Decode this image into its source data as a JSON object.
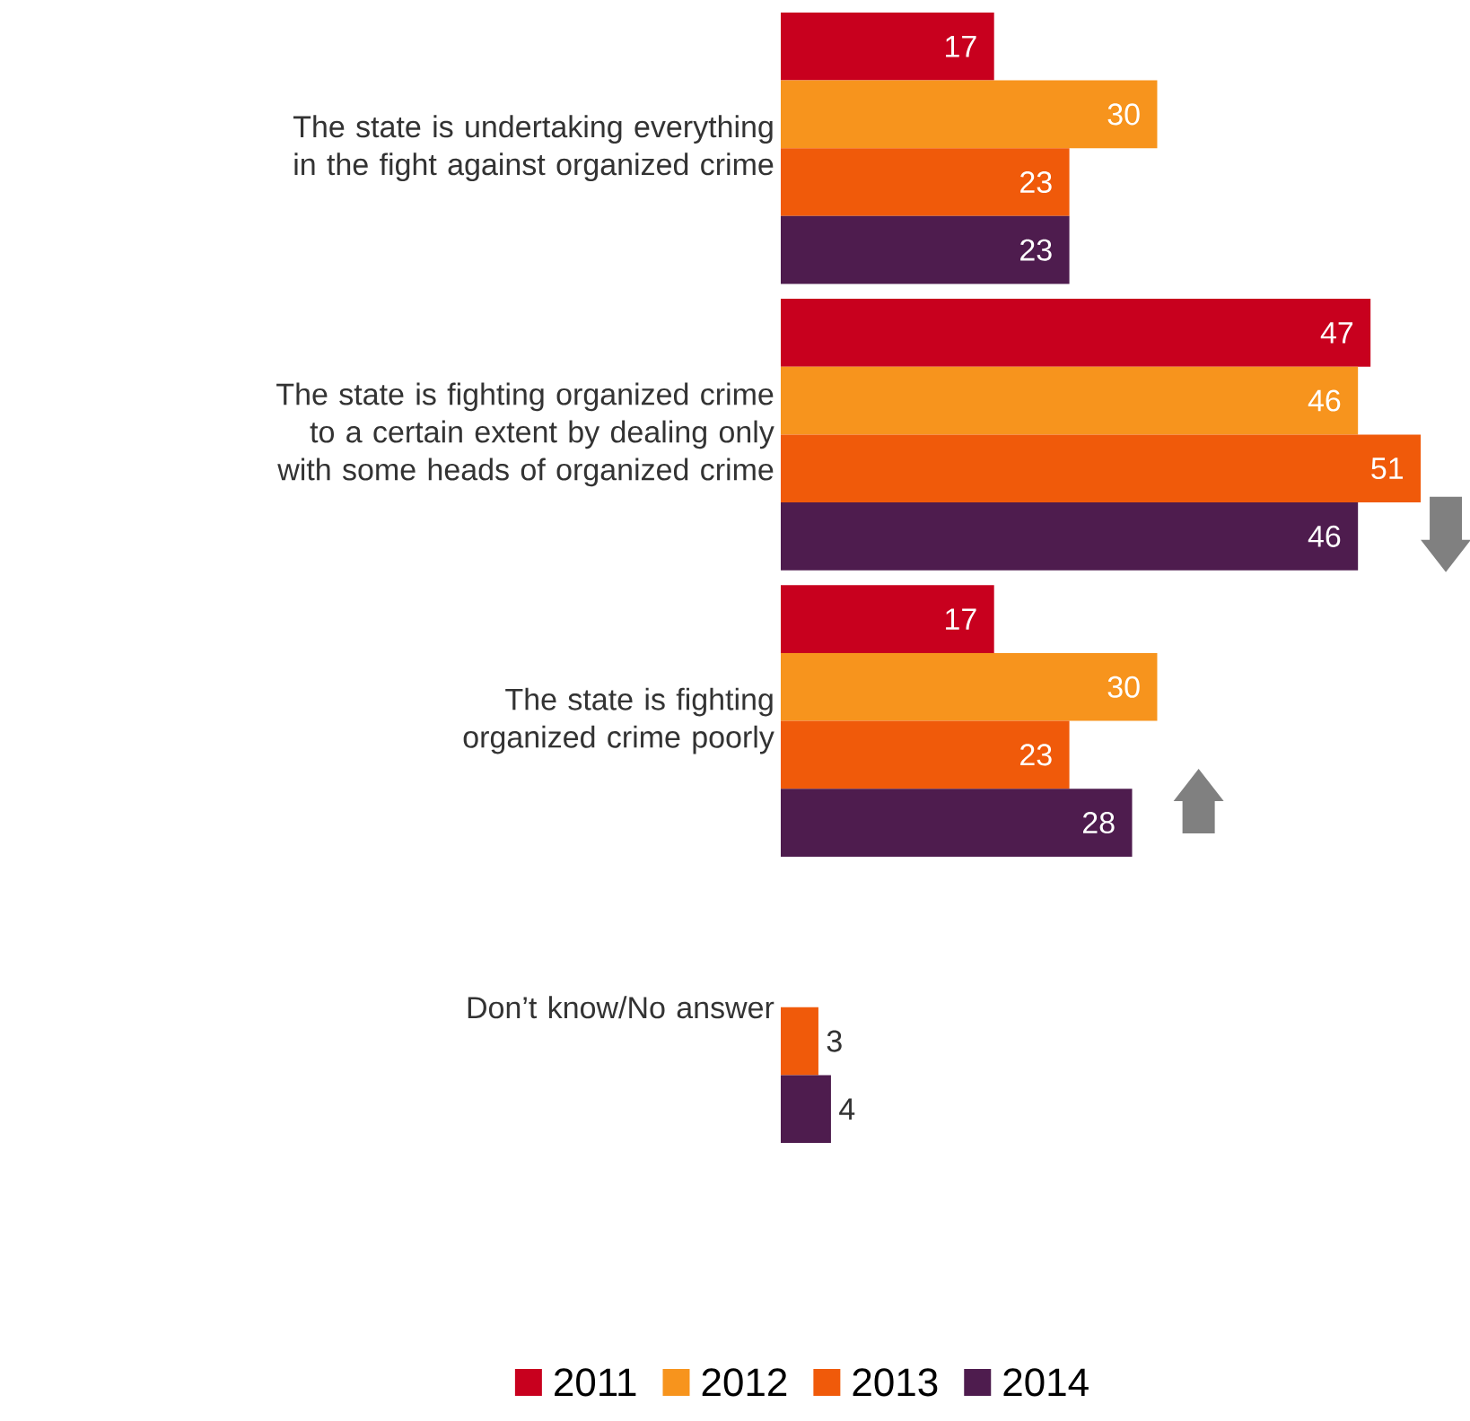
{
  "chart_data": {
    "type": "bar",
    "orientation": "horizontal",
    "categories": [
      "The state is undertaking everything in the fight against organized crime",
      "The state is fighting organized crime to a certain extent by dealing only with some heads of organized crime",
      "The state is fighting organized crime poorly",
      "Don’t know/No answer"
    ],
    "series": [
      {
        "name": "2011",
        "color": "#c8001e",
        "values": [
          17,
          47,
          17,
          null
        ]
      },
      {
        "name": "2012",
        "color": "#f7941d",
        "values": [
          30,
          46,
          30,
          null
        ]
      },
      {
        "name": "2013",
        "color": "#f05a0a",
        "values": [
          23,
          51,
          23,
          3
        ]
      },
      {
        "name": "2014",
        "color": "#4e1c4e",
        "values": [
          23,
          46,
          28,
          4
        ]
      }
    ],
    "data_labels": true,
    "legend": "bottom",
    "tick_labels": "y"
  }
}
